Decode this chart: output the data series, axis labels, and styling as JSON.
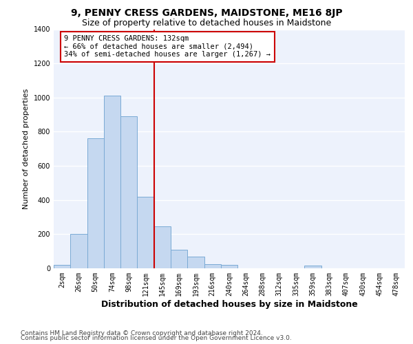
{
  "title": "9, PENNY CRESS GARDENS, MAIDSTONE, ME16 8JP",
  "subtitle": "Size of property relative to detached houses in Maidstone",
  "xlabel": "Distribution of detached houses by size in Maidstone",
  "ylabel": "Number of detached properties",
  "categories": [
    "2sqm",
    "26sqm",
    "50sqm",
    "74sqm",
    "98sqm",
    "121sqm",
    "145sqm",
    "169sqm",
    "193sqm",
    "216sqm",
    "240sqm",
    "264sqm",
    "288sqm",
    "312sqm",
    "335sqm",
    "359sqm",
    "383sqm",
    "407sqm",
    "430sqm",
    "454sqm",
    "478sqm"
  ],
  "bar_heights": [
    20,
    200,
    760,
    1010,
    890,
    420,
    245,
    110,
    70,
    25,
    20,
    0,
    0,
    0,
    0,
    15,
    0,
    0,
    0,
    0,
    0
  ],
  "bar_color": "#c5d8f0",
  "bar_edge_color": "#7aaad4",
  "highlight_line_color": "#cc0000",
  "annotation_text": "9 PENNY CRESS GARDENS: 132sqm\n← 66% of detached houses are smaller (2,494)\n34% of semi-detached houses are larger (1,267) →",
  "annotation_box_color": "#cc0000",
  "ylim": [
    0,
    1400
  ],
  "yticks": [
    0,
    200,
    400,
    600,
    800,
    1000,
    1200,
    1400
  ],
  "background_color": "#edf2fc",
  "grid_color": "#ffffff",
  "footer_line1": "Contains HM Land Registry data © Crown copyright and database right 2024.",
  "footer_line2": "Contains public sector information licensed under the Open Government Licence v3.0.",
  "title_fontsize": 10,
  "subtitle_fontsize": 9,
  "xlabel_fontsize": 9,
  "ylabel_fontsize": 8,
  "tick_fontsize": 7,
  "footer_fontsize": 6.5,
  "annot_fontsize": 7.5
}
